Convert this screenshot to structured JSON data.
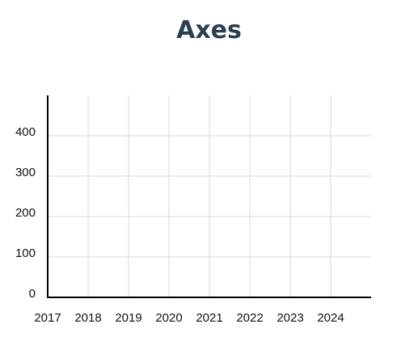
{
  "chart_data": {
    "type": "line",
    "title": "Axes",
    "xlabel": "",
    "ylabel": "",
    "x": [
      2017,
      2018,
      2019,
      2020,
      2021,
      2022,
      2023,
      2024
    ],
    "y_ticks": [
      0,
      100,
      200,
      300,
      400
    ],
    "xlim": [
      2017,
      2025
    ],
    "ylim": [
      0,
      500
    ],
    "grid": true,
    "series": []
  },
  "colors": {
    "title": "#2c3e50",
    "axis": "#000000",
    "grid": "#d9d9d9",
    "tick_text": "#111111"
  }
}
